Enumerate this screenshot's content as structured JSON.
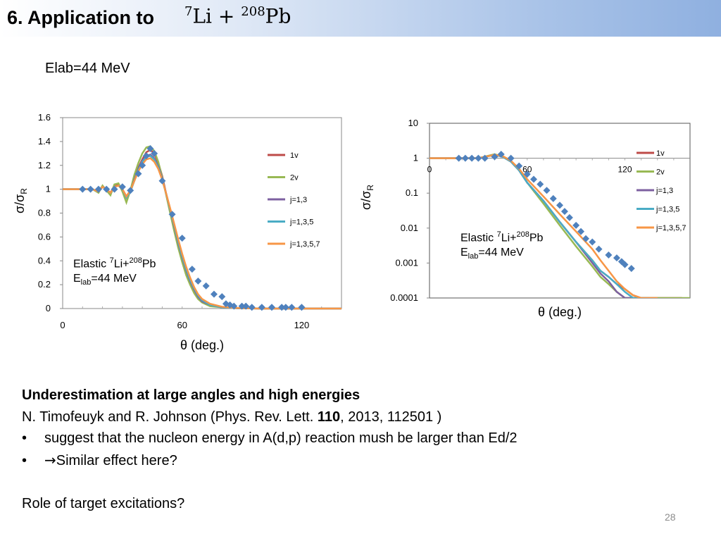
{
  "header": {
    "title": "6. Application to",
    "formula": {
      "mass1": "7",
      "el1": "Li",
      "op": "+",
      "mass2": "208",
      "el2": "Pb"
    }
  },
  "subheading": "Elab=44 MeV",
  "chart_data": [
    {
      "type": "line",
      "xlabel": "θ (deg.)",
      "ylabel": "σ/σR",
      "xlim": [
        0,
        140
      ],
      "ylim": [
        0,
        1.6
      ],
      "xticks": [
        "0",
        "60",
        "120"
      ],
      "yticks": [
        "0",
        "0.2",
        "0.4",
        "0.6",
        "0.8",
        "1",
        "1.2",
        "1.4",
        "1.6"
      ],
      "grid": false,
      "legend": "right",
      "annotation": {
        "line1_pre": "Elastic ",
        "mass1": "7",
        "el1": "Li+",
        "mass2": "208",
        "el2": "Pb",
        "line2_pre": "E",
        "line2_sub": "lab",
        "line2_post": "=44 MeV"
      },
      "series": [
        {
          "name": "1v",
          "color": "#be4b48",
          "x": [
            0,
            10,
            15,
            18,
            20,
            22,
            24,
            26,
            28,
            30,
            32,
            34,
            36,
            38,
            40,
            42,
            44,
            46,
            48,
            50,
            52,
            54,
            56,
            58,
            60,
            62,
            64,
            66,
            68,
            70,
            74,
            80,
            86,
            90,
            95,
            100,
            110,
            120,
            130,
            140
          ],
          "y": [
            1,
            1,
            1,
            0.98,
            1.02,
            1.0,
            0.97,
            1.03,
            1.04,
            1.0,
            0.94,
            0.99,
            1.09,
            1.18,
            1.25,
            1.31,
            1.33,
            1.3,
            1.22,
            1.11,
            0.96,
            0.82,
            0.68,
            0.54,
            0.42,
            0.31,
            0.22,
            0.15,
            0.1,
            0.06,
            0.03,
            0.01,
            0.005,
            0.002,
            0.001,
            0,
            0,
            0,
            0,
            0
          ]
        },
        {
          "name": "2v",
          "color": "#98b954",
          "x": [
            0,
            10,
            15,
            18,
            20,
            22,
            24,
            26,
            28,
            30,
            32,
            34,
            36,
            38,
            40,
            42,
            44,
            46,
            48,
            50,
            52,
            54,
            56,
            58,
            60,
            62,
            64,
            66,
            68,
            70,
            74,
            80,
            86,
            90,
            95,
            100,
            110,
            120,
            130,
            140
          ],
          "y": [
            1,
            1,
            1,
            0.97,
            1.03,
            0.99,
            0.95,
            1.04,
            1.05,
            0.98,
            0.89,
            0.99,
            1.12,
            1.22,
            1.3,
            1.35,
            1.36,
            1.32,
            1.23,
            1.1,
            0.95,
            0.8,
            0.65,
            0.51,
            0.39,
            0.28,
            0.2,
            0.13,
            0.08,
            0.05,
            0.02,
            0.01,
            0.004,
            0.002,
            0.001,
            0,
            0,
            0,
            0,
            0
          ]
        },
        {
          "name": "j=1,3",
          "color": "#7d60a0",
          "x": [
            0,
            10,
            15,
            18,
            20,
            22,
            24,
            26,
            28,
            30,
            32,
            34,
            36,
            38,
            40,
            42,
            44,
            46,
            48,
            50,
            52,
            54,
            56,
            58,
            60,
            62,
            64,
            66,
            68,
            70,
            74,
            80,
            86,
            90,
            95,
            100,
            110,
            120,
            130,
            140
          ],
          "y": [
            1,
            1,
            1,
            0.98,
            1.02,
            1.0,
            0.97,
            1.02,
            1.03,
            1.0,
            0.93,
            0.98,
            1.08,
            1.17,
            1.24,
            1.28,
            1.29,
            1.26,
            1.19,
            1.09,
            0.96,
            0.83,
            0.69,
            0.55,
            0.43,
            0.32,
            0.23,
            0.16,
            0.1,
            0.06,
            0.03,
            0.01,
            0.005,
            0.002,
            0.001,
            0,
            0,
            0,
            0,
            0
          ]
        },
        {
          "name": "j=1,3,5",
          "color": "#4aacc5",
          "x": [
            0,
            10,
            15,
            18,
            20,
            22,
            24,
            26,
            28,
            30,
            32,
            34,
            36,
            38,
            40,
            42,
            44,
            46,
            48,
            50,
            52,
            54,
            56,
            58,
            60,
            62,
            64,
            66,
            68,
            70,
            74,
            80,
            86,
            90,
            95,
            100,
            110,
            120,
            130,
            140
          ],
          "y": [
            1,
            1,
            1,
            0.98,
            1.02,
            1.0,
            0.97,
            1.02,
            1.03,
            1.0,
            0.93,
            0.98,
            1.07,
            1.16,
            1.23,
            1.27,
            1.28,
            1.25,
            1.18,
            1.08,
            0.96,
            0.83,
            0.7,
            0.56,
            0.44,
            0.33,
            0.24,
            0.17,
            0.11,
            0.07,
            0.03,
            0.01,
            0.005,
            0.002,
            0.001,
            0,
            0,
            0,
            0,
            0
          ]
        },
        {
          "name": "j=1,3,5,7",
          "color": "#f79646",
          "x": [
            0,
            10,
            15,
            18,
            20,
            22,
            24,
            26,
            28,
            30,
            32,
            34,
            36,
            38,
            40,
            42,
            44,
            46,
            48,
            50,
            52,
            54,
            56,
            58,
            60,
            62,
            64,
            66,
            68,
            70,
            74,
            80,
            86,
            90,
            95,
            100,
            110,
            120,
            130,
            140
          ],
          "y": [
            1,
            1,
            1,
            0.98,
            1.02,
            1.0,
            0.97,
            1.02,
            1.03,
            1.0,
            0.94,
            0.99,
            1.07,
            1.15,
            1.21,
            1.25,
            1.26,
            1.23,
            1.17,
            1.08,
            0.96,
            0.84,
            0.71,
            0.58,
            0.46,
            0.35,
            0.26,
            0.18,
            0.12,
            0.08,
            0.04,
            0.015,
            0.006,
            0.003,
            0.001,
            0,
            0,
            0,
            0,
            0
          ]
        }
      ],
      "data_points": {
        "color": "#4f81bd",
        "x": [
          10,
          14,
          18,
          22,
          26,
          30,
          34,
          38,
          40,
          42,
          44,
          46,
          50,
          55,
          60,
          65,
          68,
          72,
          76,
          80,
          82,
          84,
          86,
          90,
          92,
          95,
          100,
          105,
          110,
          112,
          115,
          120
        ],
        "y": [
          1.0,
          1.0,
          1.0,
          1.0,
          1.0,
          1.02,
          0.99,
          1.13,
          1.2,
          1.28,
          1.34,
          1.3,
          1.07,
          0.79,
          0.59,
          0.33,
          0.23,
          0.19,
          0.12,
          0.1,
          0.04,
          0.03,
          0.02,
          0.02,
          0.02,
          0.01,
          0.01,
          0.01,
          0.01,
          0.01,
          0.01,
          0.01
        ]
      }
    },
    {
      "type": "line",
      "xlabel": "θ (deg.)",
      "ylabel": "σ/σR",
      "log_y": true,
      "xlim": [
        0,
        160
      ],
      "ylim": [
        0.0001,
        10
      ],
      "xticks": [
        "0",
        "60",
        "120"
      ],
      "yticks": [
        "10",
        "1",
        "0.1",
        "0.01",
        "0.001",
        "0.0001"
      ],
      "grid": false,
      "legend": "right",
      "annotation": {
        "line1_pre": "Elastic ",
        "mass1": "7",
        "el1": "Li+",
        "mass2": "208",
        "el2": "Pb",
        "line2_pre": "E",
        "line2_sub": "lab",
        "line2_post": "=44 MeV"
      },
      "series": [
        {
          "name": "1v",
          "color": "#be4b48",
          "x": [
            0,
            30,
            40,
            45,
            50,
            55,
            60,
            70,
            80,
            90,
            100,
            105,
            110,
            115,
            120,
            125,
            130,
            135,
            140,
            145,
            150,
            155
          ],
          "y": [
            1,
            1,
            1.25,
            1.1,
            0.8,
            0.45,
            0.2,
            0.06,
            0.015,
            0.004,
            0.0012,
            0.0006,
            0.0004,
            0.00025,
            0.00018,
            0.00012,
            0.0001,
            0.0001,
            0.0001,
            0.0001,
            0.0001,
            0.0001
          ]
        },
        {
          "name": "2v",
          "color": "#98b954",
          "x": [
            0,
            30,
            40,
            45,
            50,
            55,
            60,
            70,
            80,
            90,
            100,
            105,
            110,
            115,
            120,
            125,
            130,
            135,
            140,
            145,
            150,
            155,
            160
          ],
          "y": [
            1,
            1,
            1.3,
            1.1,
            0.8,
            0.45,
            0.2,
            0.05,
            0.012,
            0.003,
            0.0008,
            0.0004,
            0.00025,
            0.00015,
            0.0001,
            0.0001,
            0.0001,
            0.0001,
            0.0001,
            0.0001,
            0.0001,
            0.0001,
            0.0001
          ]
        },
        {
          "name": "j=1,3",
          "color": "#7d60a0",
          "x": [
            0,
            30,
            40,
            45,
            50,
            55,
            60,
            70,
            80,
            90,
            100,
            105,
            110,
            115,
            120,
            125,
            130
          ],
          "y": [
            1,
            1,
            1.25,
            1.1,
            0.8,
            0.45,
            0.2,
            0.06,
            0.015,
            0.004,
            0.001,
            0.0005,
            0.0003,
            0.00015,
            0.0001,
            0.0001,
            0.0001
          ]
        },
        {
          "name": "j=1,3,5",
          "color": "#4aacc5",
          "x": [
            0,
            30,
            40,
            45,
            50,
            55,
            60,
            70,
            80,
            90,
            100,
            105,
            110,
            115,
            120,
            125,
            130,
            135
          ],
          "y": [
            1,
            1,
            1.25,
            1.1,
            0.8,
            0.45,
            0.2,
            0.06,
            0.015,
            0.004,
            0.0012,
            0.0006,
            0.0004,
            0.00025,
            0.00015,
            0.0001,
            0.0001,
            0.0001
          ]
        },
        {
          "name": "j=1,3,5,7",
          "color": "#f79646",
          "x": [
            0,
            30,
            40,
            45,
            50,
            55,
            60,
            70,
            80,
            90,
            100,
            105,
            110,
            115,
            120,
            125,
            130,
            135,
            140
          ],
          "y": [
            1,
            1,
            1.25,
            1.15,
            0.85,
            0.5,
            0.25,
            0.08,
            0.025,
            0.008,
            0.0025,
            0.0012,
            0.0006,
            0.0003,
            0.00018,
            0.00012,
            0.0001,
            0.0001,
            0.0001
          ]
        }
      ],
      "data_points": {
        "color": "#4f81bd",
        "x": [
          18,
          22,
          26,
          30,
          34,
          40,
          44,
          50,
          55,
          60,
          64,
          68,
          72,
          76,
          80,
          83,
          86,
          90,
          93,
          96,
          100,
          104,
          110,
          115,
          118,
          120,
          124
        ],
        "y": [
          1,
          1,
          1,
          1,
          1,
          1.1,
          1.3,
          1.0,
          0.6,
          0.35,
          0.25,
          0.18,
          0.12,
          0.07,
          0.045,
          0.03,
          0.02,
          0.012,
          0.008,
          0.005,
          0.004,
          0.0025,
          0.0017,
          0.0014,
          0.0011,
          0.0009,
          0.0007
        ]
      }
    }
  ],
  "body": {
    "heading": "Underestimation at large angles and high energies",
    "citation_pre": "N. Timofeuyk and R. Johnson (Phys. Rev. Lett. ",
    "citation_bold": "110",
    "citation_post": ", 2013, 112501 )",
    "bullet1": "suggest that the nucleon energy in A(d,p) reaction mush be larger than Ed/2",
    "bullet2": "Similar effect here?",
    "bullet_char": "•",
    "arrow_char": "→",
    "closing": "Role of target excitations?"
  },
  "page_number": "28"
}
